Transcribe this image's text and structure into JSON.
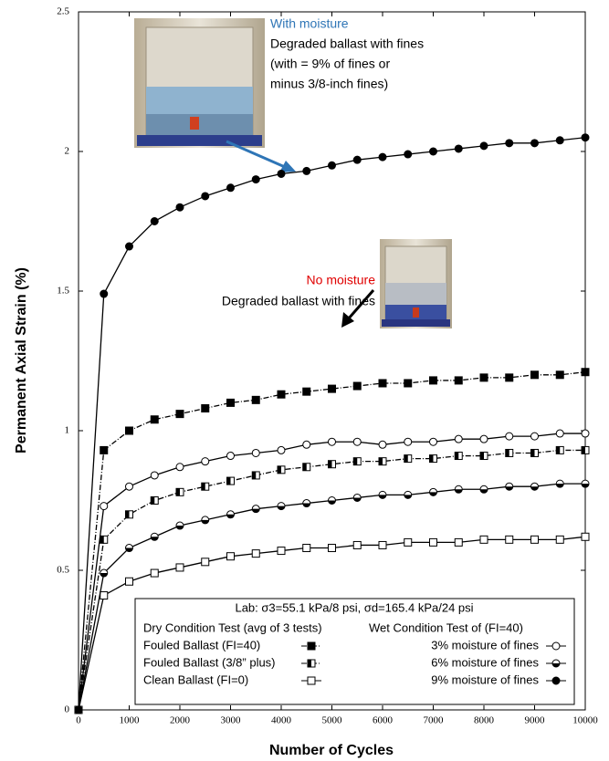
{
  "chart_data": {
    "type": "line",
    "x_label": "Number of Cycles",
    "y_label": "Permanent Axial Strain (%)",
    "xlim": [
      0,
      10000
    ],
    "ylim": [
      0,
      2.5
    ],
    "xticks": [
      0,
      1000,
      2000,
      3000,
      4000,
      5000,
      6000,
      7000,
      8000,
      9000,
      10000
    ],
    "yticks": [
      0,
      0.5,
      1,
      1.5,
      2,
      2.5
    ],
    "x": [
      0,
      500,
      1000,
      1500,
      2000,
      2500,
      3000,
      3500,
      4000,
      4500,
      5000,
      5500,
      6000,
      6500,
      7000,
      7500,
      8000,
      8500,
      9000,
      9500,
      10000
    ],
    "legend_title": "Lab: σ3=55.1 kPa/8 psi, σd=165.4 kPa/24 psi",
    "legend_headings": [
      "Dry Condition Test (avg of 3 tests)",
      "Wet Condition Test of (FI=40)"
    ],
    "legend_position": "bottom-right",
    "series": [
      {
        "name": "Fouled Ballast (FI=40)",
        "color": "#000000",
        "marker": "square-filled",
        "dash": "dashdot",
        "values": [
          0,
          0.93,
          1.0,
          1.04,
          1.06,
          1.08,
          1.1,
          1.11,
          1.13,
          1.14,
          1.15,
          1.16,
          1.17,
          1.17,
          1.18,
          1.18,
          1.19,
          1.19,
          1.2,
          1.2,
          1.21
        ]
      },
      {
        "name": "Fouled Ballast (3/8” plus)",
        "color": "#000000",
        "marker": "square-half",
        "dash": "dashdot",
        "values": [
          0,
          0.61,
          0.7,
          0.75,
          0.78,
          0.8,
          0.82,
          0.84,
          0.86,
          0.87,
          0.88,
          0.89,
          0.89,
          0.9,
          0.9,
          0.91,
          0.91,
          0.92,
          0.92,
          0.93,
          0.93
        ]
      },
      {
        "name": "Clean Ballast (FI=0)",
        "color": "#000000",
        "marker": "square-open",
        "dash": "solid",
        "values": [
          0,
          0.41,
          0.46,
          0.49,
          0.51,
          0.53,
          0.55,
          0.56,
          0.57,
          0.58,
          0.58,
          0.59,
          0.59,
          0.6,
          0.6,
          0.6,
          0.61,
          0.61,
          0.61,
          0.61,
          0.62
        ]
      },
      {
        "name": "3% moisture of fines",
        "color": "#000000",
        "marker": "circle-open",
        "dash": "solid",
        "values": [
          0,
          0.73,
          0.8,
          0.84,
          0.87,
          0.89,
          0.91,
          0.92,
          0.93,
          0.95,
          0.96,
          0.96,
          0.95,
          0.96,
          0.96,
          0.97,
          0.97,
          0.98,
          0.98,
          0.99,
          0.99
        ]
      },
      {
        "name": "6% moisture of fines",
        "color": "#000000",
        "marker": "circle-half",
        "dash": "solid",
        "values": [
          0,
          0.49,
          0.58,
          0.62,
          0.66,
          0.68,
          0.7,
          0.72,
          0.73,
          0.74,
          0.75,
          0.76,
          0.77,
          0.77,
          0.78,
          0.79,
          0.79,
          0.8,
          0.8,
          0.81,
          0.81
        ]
      },
      {
        "name": "9% moisture of fines",
        "color": "#000000",
        "marker": "circle-filled",
        "dash": "solid",
        "values": [
          0,
          1.49,
          1.66,
          1.75,
          1.8,
          1.84,
          1.87,
          1.9,
          1.92,
          1.93,
          1.95,
          1.97,
          1.98,
          1.99,
          2.0,
          2.01,
          2.02,
          2.03,
          2.03,
          2.04,
          2.05
        ]
      }
    ],
    "annotations": [
      {
        "text": "With moisture",
        "color": "#2e75b6"
      },
      {
        "text": "Degraded ballast with fines",
        "color": "#000000"
      },
      {
        "text": "(with = 9% of fines or",
        "color": "#000000"
      },
      {
        "text": "minus 3/8-inch fines)",
        "color": "#000000"
      },
      {
        "text": "No moisture",
        "color": "#e00000"
      },
      {
        "text": "Degraded ballast with fines",
        "color": "#000000"
      }
    ]
  }
}
